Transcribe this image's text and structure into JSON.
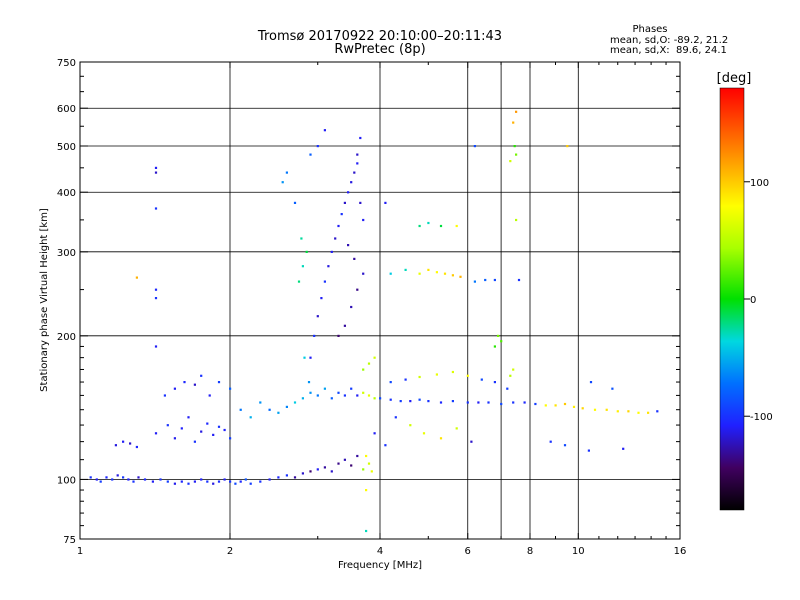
{
  "chart_data": {
    "type": "scatter",
    "title": "Tromsø 20170922 20:10:00–20:11:43",
    "subtitle": "RwPretec (8p)",
    "xlabel": "Frequency [MHz]",
    "ylabel": "Stationary phase Virtual Height [km]",
    "x_scale": "log",
    "y_scale": "log",
    "xlim": [
      1,
      16
    ],
    "ylim": [
      75,
      750
    ],
    "x_ticks": [
      1,
      2,
      4,
      6,
      8,
      10,
      16
    ],
    "y_ticks": [
      75,
      100,
      200,
      300,
      400,
      500,
      600,
      750
    ],
    "x_gridlines": [
      2,
      4,
      6,
      7,
      8,
      10
    ],
    "y_gridlines": [
      100,
      200,
      300,
      400,
      500,
      600
    ],
    "grid": true,
    "legend_text": {
      "header": "Phases",
      "line1": "mean, sd,O: -89.2, 21.2",
      "line2": "mean, sd,X:  89.6, 24.1"
    },
    "colorbar": {
      "label": "[deg]",
      "range": [
        -180,
        180
      ],
      "ticks": [
        100,
        0,
        -100
      ],
      "position": "right"
    },
    "points": [
      [
        1.05,
        101,
        -100
      ],
      [
        1.08,
        100,
        -110
      ],
      [
        1.1,
        99,
        -95
      ],
      [
        1.13,
        101,
        -105
      ],
      [
        1.16,
        100,
        -100
      ],
      [
        1.19,
        102,
        -115
      ],
      [
        1.22,
        101,
        -98
      ],
      [
        1.25,
        100,
        -108
      ],
      [
        1.28,
        99,
        -100
      ],
      [
        1.31,
        101,
        -120
      ],
      [
        1.35,
        100,
        -105
      ],
      [
        1.4,
        99,
        -110
      ],
      [
        1.45,
        100,
        -100
      ],
      [
        1.5,
        99,
        -95
      ],
      [
        1.55,
        98,
        -112
      ],
      [
        1.6,
        99,
        -105
      ],
      [
        1.65,
        98,
        -100
      ],
      [
        1.7,
        99,
        -110
      ],
      [
        1.75,
        100,
        -108
      ],
      [
        1.8,
        99,
        -100
      ],
      [
        1.85,
        98,
        -115
      ],
      [
        1.9,
        99,
        -102
      ],
      [
        1.95,
        100,
        -110
      ],
      [
        2.0,
        99,
        -100
      ],
      [
        2.05,
        98,
        -90
      ],
      [
        2.1,
        99,
        -105
      ],
      [
        2.15,
        100,
        -85
      ],
      [
        2.2,
        98,
        -95
      ],
      [
        2.3,
        99,
        -100
      ],
      [
        2.4,
        100,
        -110
      ],
      [
        2.5,
        101,
        -105
      ],
      [
        2.6,
        102,
        -100
      ],
      [
        2.7,
        101,
        -130
      ],
      [
        2.8,
        103,
        -120
      ],
      [
        2.9,
        104,
        -140
      ],
      [
        3.0,
        105,
        -110
      ],
      [
        3.1,
        106,
        -130
      ],
      [
        3.2,
        104,
        -120
      ],
      [
        3.3,
        108,
        -135
      ],
      [
        3.4,
        110,
        -125
      ],
      [
        3.5,
        107,
        -140
      ],
      [
        3.6,
        112,
        -130
      ],
      [
        3.7,
        105,
        40
      ],
      [
        3.8,
        108,
        60
      ],
      [
        3.75,
        112,
        80
      ],
      [
        3.85,
        104,
        70
      ],
      [
        1.18,
        118,
        -115
      ],
      [
        1.22,
        120,
        -110
      ],
      [
        1.26,
        119,
        -120
      ],
      [
        1.3,
        117,
        -105
      ],
      [
        1.42,
        125,
        -110
      ],
      [
        1.5,
        130,
        -100
      ],
      [
        1.55,
        122,
        -112
      ],
      [
        1.6,
        128,
        -108
      ],
      [
        1.65,
        135,
        -110
      ],
      [
        1.7,
        120,
        -100
      ],
      [
        1.75,
        126,
        -115
      ],
      [
        1.8,
        131,
        -105
      ],
      [
        1.85,
        124,
        -110
      ],
      [
        1.9,
        129,
        -100
      ],
      [
        1.95,
        127,
        -108
      ],
      [
        2.0,
        122,
        -95
      ],
      [
        1.48,
        150,
        -100
      ],
      [
        1.55,
        155,
        -110
      ],
      [
        1.62,
        160,
        -105
      ],
      [
        1.7,
        158,
        -120
      ],
      [
        1.75,
        165,
        -100
      ],
      [
        1.82,
        150,
        -110
      ],
      [
        1.9,
        160,
        -95
      ],
      [
        2.0,
        155,
        -80
      ],
      [
        2.1,
        140,
        -70
      ],
      [
        2.2,
        135,
        -50
      ],
      [
        2.3,
        145,
        -60
      ],
      [
        2.4,
        140,
        -75
      ],
      [
        2.5,
        138,
        -55
      ],
      [
        2.6,
        142,
        -65
      ],
      [
        2.7,
        145,
        -40
      ],
      [
        2.8,
        148,
        -50
      ],
      [
        2.9,
        152,
        -60
      ],
      [
        3.0,
        150,
        -70
      ],
      [
        3.1,
        155,
        -55
      ],
      [
        3.2,
        148,
        -80
      ],
      [
        3.3,
        152,
        -90
      ],
      [
        3.4,
        150,
        -100
      ],
      [
        3.5,
        155,
        -95
      ],
      [
        3.6,
        150,
        -110
      ],
      [
        3.7,
        152,
        60
      ],
      [
        3.8,
        150,
        70
      ],
      [
        3.9,
        148,
        50
      ],
      [
        4.0,
        148,
        -90
      ],
      [
        4.2,
        147,
        -100
      ],
      [
        4.4,
        146,
        -95
      ],
      [
        4.6,
        146,
        -110
      ],
      [
        4.8,
        147,
        -90
      ],
      [
        5.0,
        146,
        -100
      ],
      [
        5.3,
        145,
        -105
      ],
      [
        5.6,
        146,
        -95
      ],
      [
        6.0,
        145,
        -100
      ],
      [
        6.3,
        145,
        -110
      ],
      [
        6.6,
        145,
        -100
      ],
      [
        7.0,
        144,
        -90
      ],
      [
        7.4,
        145,
        -100
      ],
      [
        7.8,
        145,
        -105
      ],
      [
        8.2,
        144,
        -95
      ],
      [
        8.6,
        143,
        80
      ],
      [
        9.0,
        143,
        90
      ],
      [
        9.4,
        144,
        100
      ],
      [
        9.8,
        142,
        85
      ],
      [
        10.2,
        141,
        95
      ],
      [
        10.8,
        140,
        80
      ],
      [
        11.4,
        140,
        90
      ],
      [
        12.0,
        139,
        85
      ],
      [
        12.6,
        139,
        95
      ],
      [
        13.2,
        138,
        80
      ],
      [
        13.8,
        138,
        90
      ],
      [
        14.4,
        139,
        -100
      ],
      [
        4.2,
        160,
        -90
      ],
      [
        4.5,
        162,
        -100
      ],
      [
        4.8,
        164,
        60
      ],
      [
        5.2,
        166,
        70
      ],
      [
        5.6,
        168,
        65
      ],
      [
        6.0,
        165,
        80
      ],
      [
        6.4,
        162,
        -90
      ],
      [
        6.8,
        160,
        -100
      ],
      [
        7.2,
        155,
        -95
      ],
      [
        3.7,
        170,
        40
      ],
      [
        3.8,
        175,
        50
      ],
      [
        3.9,
        180,
        60
      ],
      [
        2.9,
        180,
        -110
      ],
      [
        2.95,
        200,
        -100
      ],
      [
        3.0,
        220,
        -120
      ],
      [
        3.05,
        240,
        -110
      ],
      [
        3.1,
        260,
        -100
      ],
      [
        3.15,
        280,
        -115
      ],
      [
        3.2,
        300,
        -110
      ],
      [
        3.25,
        320,
        -120
      ],
      [
        3.3,
        340,
        -110
      ],
      [
        3.35,
        360,
        -100
      ],
      [
        3.4,
        380,
        -120
      ],
      [
        3.45,
        400,
        -110
      ],
      [
        3.5,
        420,
        -115
      ],
      [
        3.55,
        440,
        -120
      ],
      [
        3.6,
        460,
        -110
      ],
      [
        3.65,
        380,
        -120
      ],
      [
        3.7,
        350,
        -110
      ],
      [
        3.3,
        200,
        -140
      ],
      [
        3.4,
        210,
        -130
      ],
      [
        3.5,
        230,
        -125
      ],
      [
        3.6,
        250,
        -135
      ],
      [
        3.7,
        270,
        -120
      ],
      [
        3.55,
        290,
        -130
      ],
      [
        3.45,
        310,
        -125
      ],
      [
        2.75,
        260,
        -20
      ],
      [
        2.8,
        280,
        -30
      ],
      [
        2.85,
        300,
        -10
      ],
      [
        2.78,
        320,
        -25
      ],
      [
        2.82,
        180,
        -40
      ],
      [
        2.88,
        160,
        -60
      ],
      [
        3.0,
        500,
        -100
      ],
      [
        3.1,
        540,
        -110
      ],
      [
        2.9,
        480,
        -80
      ],
      [
        3.6,
        480,
        -120
      ],
      [
        3.65,
        520,
        -110
      ],
      [
        1.42,
        450,
        -110
      ],
      [
        1.42,
        440,
        -120
      ],
      [
        1.42,
        370,
        -100
      ],
      [
        1.42,
        250,
        -105
      ],
      [
        1.42,
        240,
        -100
      ],
      [
        1.42,
        190,
        -110
      ],
      [
        1.3,
        265,
        110
      ],
      [
        2.55,
        420,
        -60
      ],
      [
        2.6,
        440,
        -70
      ],
      [
        2.7,
        380,
        -80
      ],
      [
        4.1,
        380,
        -110
      ],
      [
        4.8,
        340,
        -20
      ],
      [
        5.0,
        345,
        -30
      ],
      [
        5.3,
        340,
        -10
      ],
      [
        5.7,
        340,
        80
      ],
      [
        4.2,
        270,
        -40
      ],
      [
        4.5,
        275,
        -30
      ],
      [
        4.8,
        270,
        70
      ],
      [
        5.0,
        275,
        90
      ],
      [
        5.2,
        272,
        80
      ],
      [
        5.4,
        270,
        90
      ],
      [
        5.6,
        268,
        100
      ],
      [
        5.8,
        266,
        110
      ],
      [
        6.2,
        260,
        -70
      ],
      [
        6.5,
        262,
        -80
      ],
      [
        6.8,
        262,
        -90
      ],
      [
        7.6,
        262,
        -100
      ],
      [
        6.8,
        190,
        10
      ],
      [
        6.9,
        200,
        30
      ],
      [
        7.0,
        195,
        20
      ],
      [
        7.4,
        170,
        60
      ],
      [
        7.3,
        165,
        50
      ],
      [
        7.5,
        590,
        120
      ],
      [
        7.4,
        560,
        110
      ],
      [
        7.45,
        500,
        10
      ],
      [
        7.5,
        480,
        30
      ],
      [
        7.3,
        465,
        60
      ],
      [
        6.2,
        500,
        -90
      ],
      [
        9.5,
        500,
        100
      ],
      [
        7.5,
        350,
        50
      ],
      [
        4.6,
        130,
        60
      ],
      [
        4.9,
        125,
        70
      ],
      [
        5.3,
        122,
        90
      ],
      [
        5.7,
        128,
        60
      ],
      [
        4.3,
        135,
        -100
      ],
      [
        6.1,
        120,
        -120
      ],
      [
        3.9,
        125,
        -110
      ],
      [
        4.1,
        118,
        -100
      ],
      [
        3.75,
        78,
        -30
      ],
      [
        3.75,
        95,
        80
      ],
      [
        8.8,
        120,
        -100
      ],
      [
        9.4,
        118,
        -90
      ],
      [
        10.5,
        115,
        -100
      ],
      [
        12.3,
        116,
        -110
      ],
      [
        10.6,
        160,
        -90
      ],
      [
        11.7,
        155,
        -85
      ]
    ]
  }
}
